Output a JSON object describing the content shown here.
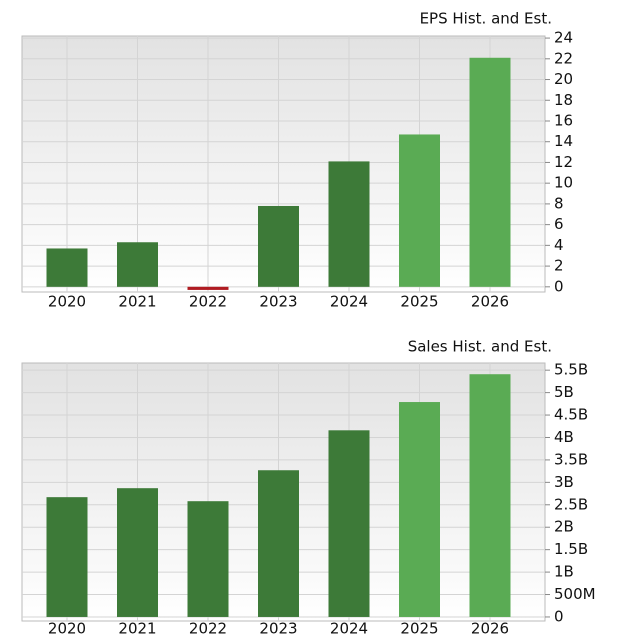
{
  "chart_data": [
    {
      "type": "bar",
      "title": "EPS Hist. and Est.",
      "categories": [
        "2020",
        "2021",
        "2022",
        "2023",
        "2024",
        "2025",
        "2026"
      ],
      "values": [
        3.7,
        4.3,
        -0.3,
        7.8,
        12.1,
        14.7,
        22.1
      ],
      "colors": [
        "#3d7a38",
        "#3d7a38",
        "#b01c22",
        "#3d7a38",
        "#3d7a38",
        "#5aab54",
        "#5aab54"
      ],
      "ylim": [
        -0.5,
        24.2
      ],
      "yticks": [
        0,
        2,
        4,
        6,
        8,
        10,
        12,
        14,
        16,
        18,
        20,
        22,
        24
      ],
      "grid": true
    },
    {
      "type": "bar",
      "title": "Sales Hist. and Est.",
      "categories": [
        "2020",
        "2021",
        "2022",
        "2023",
        "2024",
        "2025",
        "2026"
      ],
      "values": [
        2670000000,
        2870000000,
        2580000000,
        3270000000,
        4160000000,
        4790000000,
        5410000000
      ],
      "colors": [
        "#3d7a38",
        "#3d7a38",
        "#3d7a38",
        "#3d7a38",
        "#3d7a38",
        "#5aab54",
        "#5aab54"
      ],
      "ylim": [
        -90000000,
        5660000000
      ],
      "yticks": [
        0,
        {
          "value": 500000000,
          "label": "500M"
        },
        {
          "value": 1000000000,
          "label": "1B"
        },
        {
          "value": 1500000000,
          "label": "1.5B"
        },
        {
          "value": 2000000000,
          "label": "2B"
        },
        {
          "value": 2500000000,
          "label": "2.5B"
        },
        {
          "value": 3000000000,
          "label": "3B"
        },
        {
          "value": 3500000000,
          "label": "3.5B"
        },
        {
          "value": 4000000000,
          "label": "4B"
        },
        {
          "value": 4500000000,
          "label": "4.5B"
        },
        {
          "value": 5000000000,
          "label": "5B"
        },
        {
          "value": 5500000000,
          "label": "5.5B"
        }
      ],
      "grid": true
    }
  ]
}
